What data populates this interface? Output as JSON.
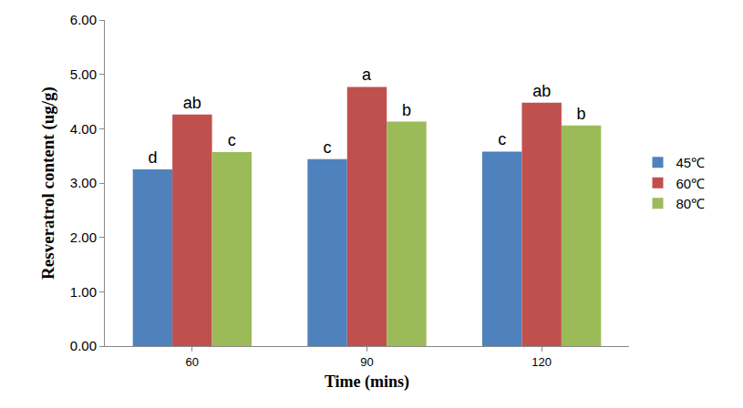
{
  "chart_data": {
    "type": "bar",
    "x_label": "Time (mins)",
    "y_label": "Resveratrol content (ug/g)",
    "categories": [
      "60",
      "90",
      "120"
    ],
    "series": [
      {
        "name": "45℃",
        "color": "#4F81BD",
        "values": [
          3.25,
          3.44,
          3.58
        ],
        "letters": [
          "d",
          "c",
          "c"
        ]
      },
      {
        "name": "60℃",
        "color": "#C0504D",
        "values": [
          4.26,
          4.77,
          4.48
        ],
        "letters": [
          "ab",
          "a",
          "ab"
        ]
      },
      {
        "name": "80℃",
        "color": "#9BBB59",
        "values": [
          3.57,
          4.13,
          4.06
        ],
        "letters": [
          "c",
          "b",
          "b"
        ]
      }
    ],
    "ylim": [
      0,
      6
    ],
    "yticks": [
      {
        "value": 0,
        "label": "0.00"
      },
      {
        "value": 1,
        "label": "1.00"
      },
      {
        "value": 2,
        "label": "2.00"
      },
      {
        "value": 3,
        "label": "3.00"
      },
      {
        "value": 4,
        "label": "4.00"
      },
      {
        "value": 5,
        "label": "5.00"
      },
      {
        "value": 6,
        "label": "6.00"
      }
    ],
    "grid": false,
    "legend": "right"
  }
}
